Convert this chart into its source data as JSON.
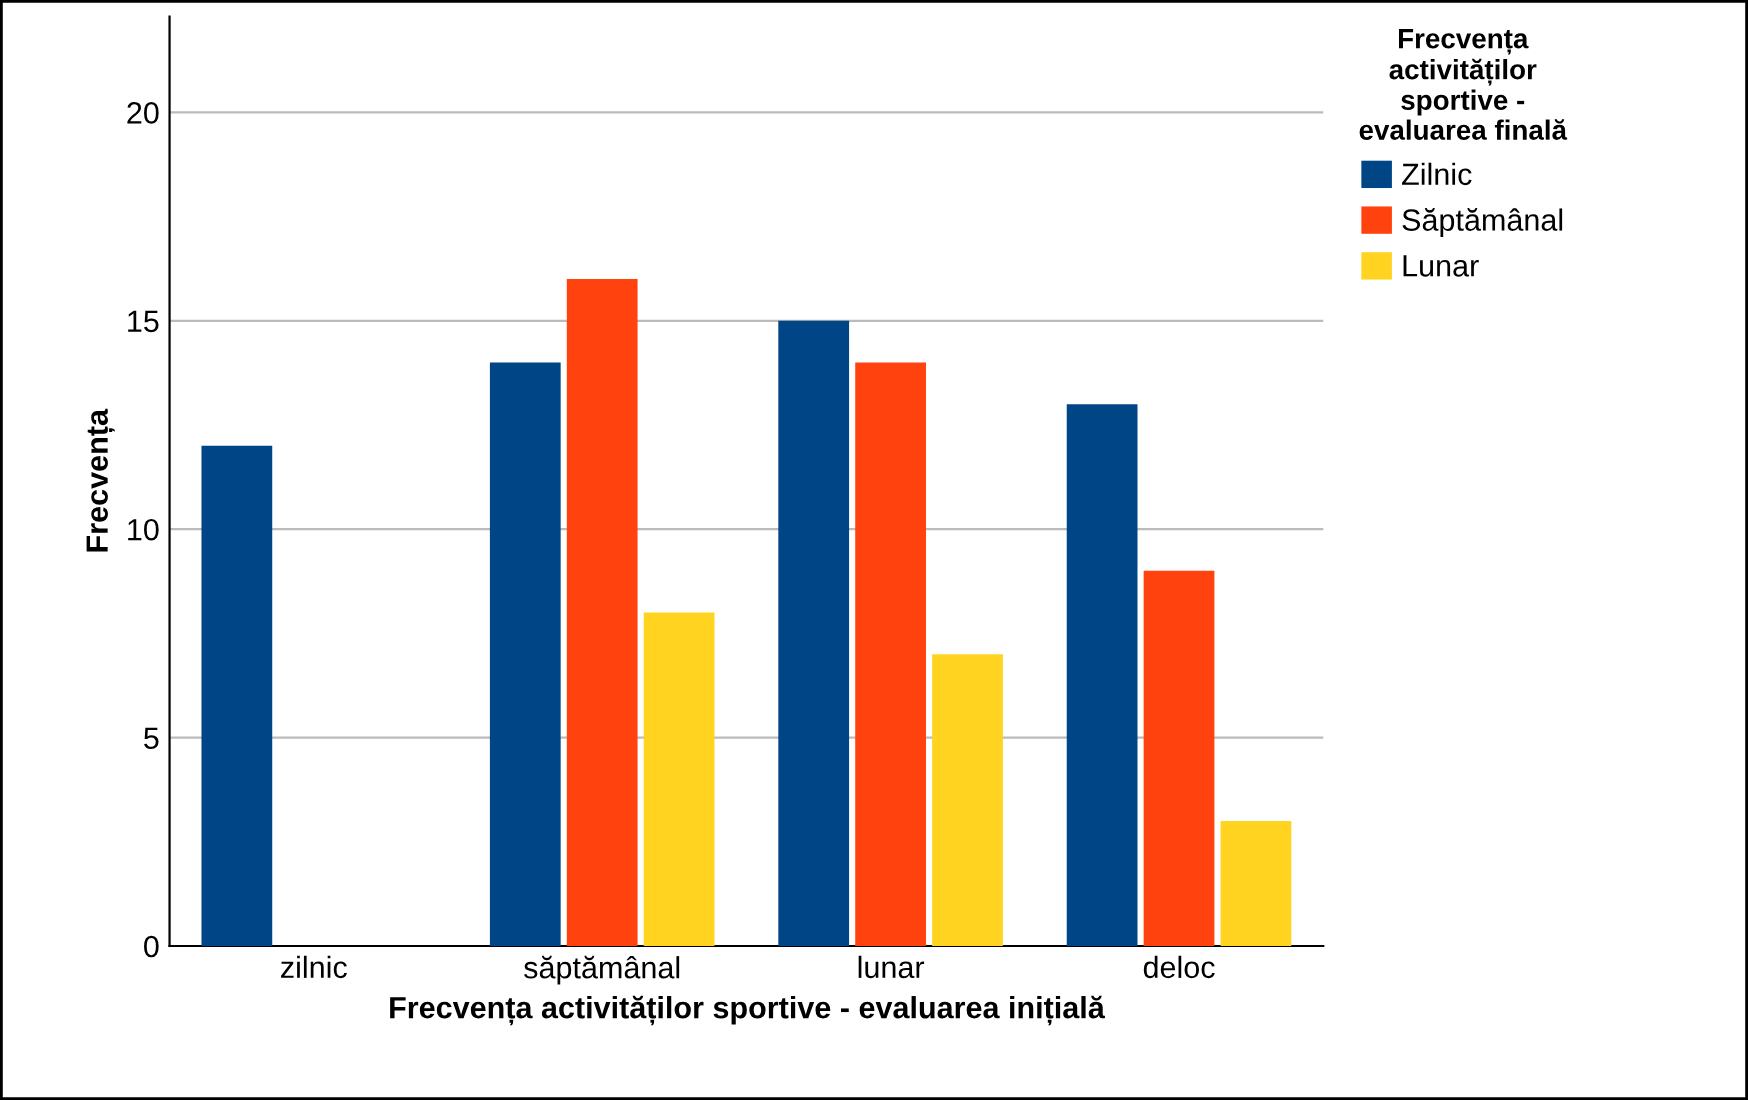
{
  "chart_data": {
    "type": "bar",
    "xlabel": "Frecvența activităților sportive - evaluarea inițială",
    "ylabel": "Frecvența",
    "legend_title": "Frecvența\nactivităților\nsportive -\nevaluarea finală",
    "categories": [
      "zilnic",
      "săptămânal",
      "lunar",
      "deloc"
    ],
    "series": [
      {
        "name": "Zilnic",
        "color": "#004586",
        "values": [
          12,
          14,
          15,
          13
        ]
      },
      {
        "name": "Săptămânal",
        "color": "#ff420e",
        "values": [
          null,
          16,
          14,
          9
        ]
      },
      {
        "name": "Lunar",
        "color": "#ffd320",
        "values": [
          null,
          8,
          7,
          3
        ]
      }
    ],
    "ylim": [
      0,
      22.3
    ],
    "yticks": [
      0,
      5,
      10,
      15,
      20
    ],
    "grid": "y",
    "legend": "top right"
  }
}
